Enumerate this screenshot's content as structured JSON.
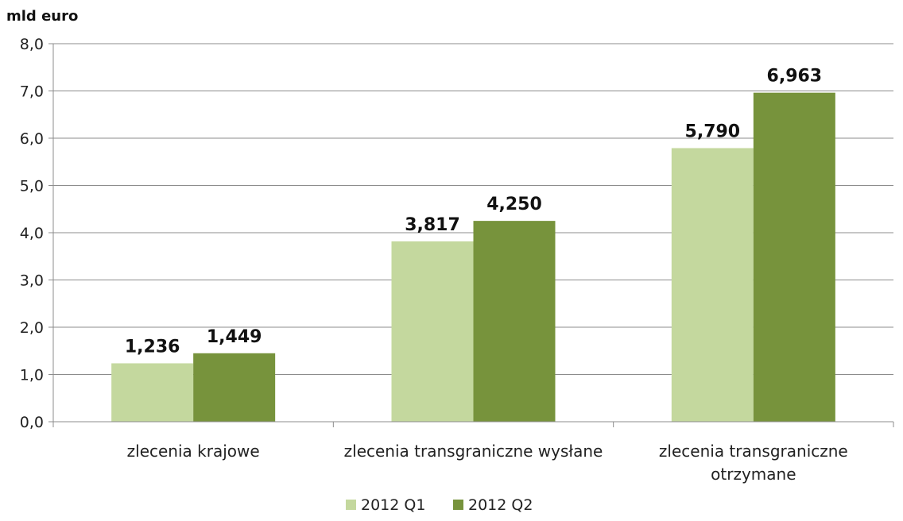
{
  "chart_data": {
    "type": "bar",
    "title": "",
    "ylabel": "mld euro",
    "xlabel": "",
    "ylim": [
      0,
      8
    ],
    "yticks": [
      "0,0",
      "1,0",
      "2,0",
      "3,0",
      "4,0",
      "5,0",
      "6,0",
      "7,0",
      "8,0"
    ],
    "grid": true,
    "legend_position": "bottom",
    "categories": [
      [
        "zlecenia krajowe"
      ],
      [
        "zlecenia transgraniczne wysłane"
      ],
      [
        "zlecenia transgraniczne",
        "otrzymane"
      ]
    ],
    "series": [
      {
        "name": "2012 Q1",
        "color": "#c4d89e",
        "values": [
          1.236,
          3.817,
          5.79
        ],
        "labels": [
          "1,236",
          "3,817",
          "5,790"
        ]
      },
      {
        "name": "2012 Q2",
        "color": "#77933c",
        "values": [
          1.449,
          4.25,
          6.963
        ],
        "labels": [
          "1,449",
          "4,250",
          "6,963"
        ]
      }
    ]
  }
}
